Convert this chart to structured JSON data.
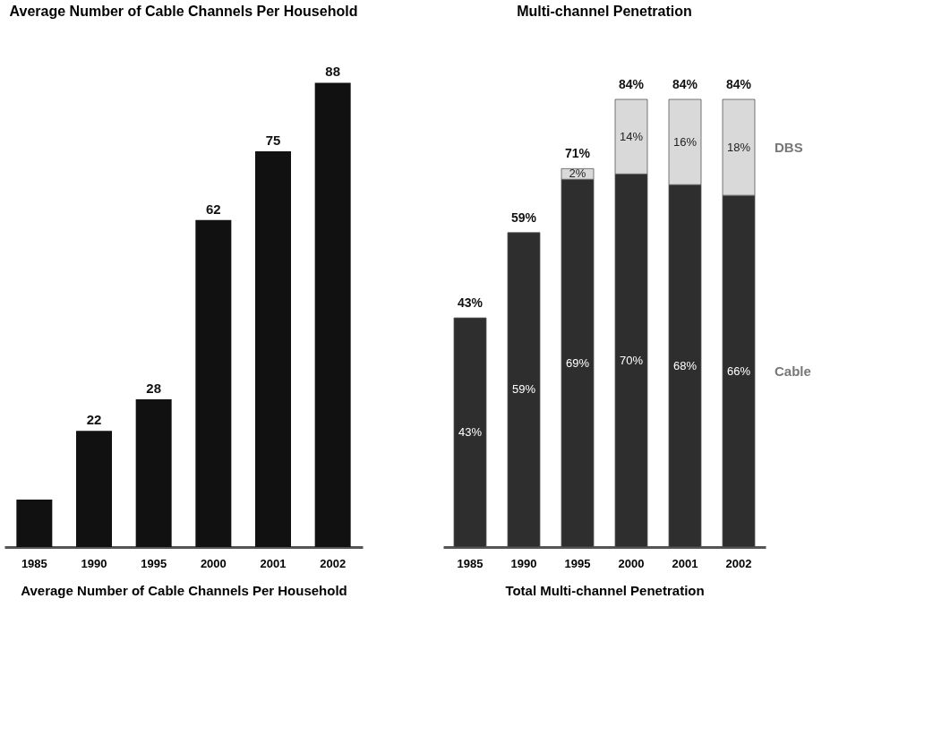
{
  "chart_data": [
    {
      "type": "bar",
      "title": "Average Number of Cable Channels Per Household",
      "xlabel": "Average Number of Cable Channels Per Household",
      "categories": [
        "1985",
        "1990",
        "1995",
        "2000",
        "2001",
        "2002"
      ],
      "values": [
        9,
        22,
        28,
        62,
        75,
        88
      ],
      "value_labels": [
        null,
        "22",
        "28",
        "62",
        "75",
        "88"
      ],
      "color": "#111111",
      "grid": false
    },
    {
      "type": "bar",
      "stacked": true,
      "title": "Multi-channel Penetration",
      "xlabel": "Total Multi-channel Penetration",
      "categories": [
        "1985",
        "1990",
        "1995",
        "2000",
        "2001",
        "2002"
      ],
      "series": [
        {
          "name": "Cable",
          "color": "#2e2e2e",
          "values": [
            43,
            59,
            69,
            70,
            68,
            66
          ],
          "value_labels": [
            "43%",
            "59%",
            "69%",
            "70%",
            "68%",
            "66%"
          ]
        },
        {
          "name": "DBS",
          "color": "#d9d9d9",
          "values": [
            null,
            null,
            2,
            14,
            16,
            18
          ],
          "value_labels": [
            null,
            null,
            "2%",
            "14%",
            "16%",
            "18%"
          ]
        }
      ],
      "totals": [
        "43%",
        "59%",
        "71%",
        "84%",
        "84%",
        "84%"
      ],
      "grid": false,
      "legend": false
    }
  ]
}
